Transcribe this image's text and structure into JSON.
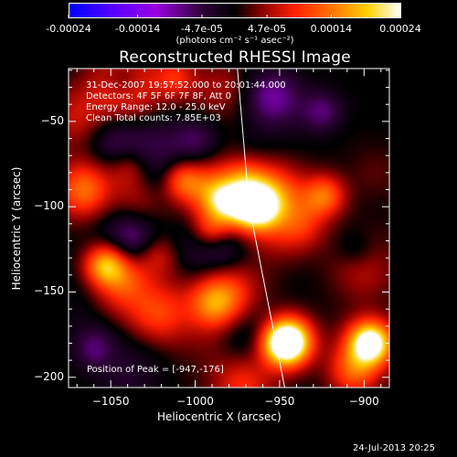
{
  "colorbar": {
    "tick_labels": [
      "-0.00024",
      "-0.00014",
      "-4.7e-05",
      "4.7e-05",
      "0.00014",
      "0.00024"
    ],
    "tick_values": [
      -0.00024,
      -0.00014,
      -4.7e-05,
      4.7e-05,
      0.00014,
      0.00024
    ],
    "units": "(photons cm⁻² s⁻¹ asec⁻²)",
    "colors": [
      "#0000ff",
      "#7a00ff",
      "#000000",
      "#ff2a00",
      "#ffb000",
      "#ffffff"
    ]
  },
  "chart_data": {
    "type": "heatmap",
    "title": "Reconstructed RHESSI Image",
    "xlabel": "Heliocentric X (arcsec)",
    "ylabel": "Heliocentric Y (arcsec)",
    "xlim": [
      -1075,
      -885
    ],
    "ylim": [
      -206,
      -19
    ],
    "x_ticks": [
      -1050,
      -1000,
      -950,
      -900
    ],
    "y_ticks": [
      -50,
      -100,
      -150,
      -200
    ],
    "x_tick_labels": [
      "−1050",
      "−1000",
      "−950",
      "−900"
    ],
    "y_tick_labels": [
      "−50",
      "−100",
      "−150",
      "−200"
    ],
    "annotations": [
      "31-Dec-2007 19:57:52.000 to 20:01:44.000",
      "Detectors: 4F 5F 6F 7F 8F, Att 0",
      "Energy Range: 12.0 - 25.0 keV",
      "Clean      Total counts: 7.85E+03"
    ],
    "peak_label": "Position of Peak = [-947,-176]",
    "peak": [
      -947,
      -176
    ],
    "limb_line": [
      [
        -975,
        -19
      ],
      [
        -968,
        -100
      ],
      [
        -947,
        -206
      ]
    ]
  },
  "footer": {
    "timestamp": "24-Jul-2013 20:25"
  }
}
